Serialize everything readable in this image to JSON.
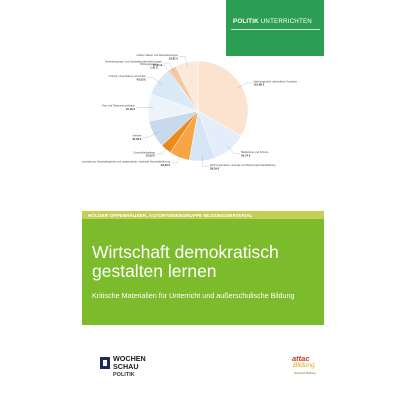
{
  "series": {
    "label_bold": "POLITIK",
    "label_rest": "UNTERRICHTEN",
    "color": "#2c9e54"
  },
  "author_line": "HOLGER OPPENHÄUSER, AUTOR*INNENGRUPPE BILDUNGSMATERIAL",
  "title": "Wirtschaft demokratisch gestalten lernen",
  "subtitle": "Kritische Materialien für Unterricht und außerschulische Bildung",
  "publisher": {
    "line1": "WOCHEN",
    "line2": "SCHAU",
    "line3": "POLITIK"
  },
  "partner": {
    "name_top": "attac",
    "name_bottom": "Bildung",
    "tagline": "Netzwerk Bildung"
  },
  "colors": {
    "band": "#7cbb2b",
    "author_bar": "#c5cf58",
    "white": "#ffffff"
  },
  "chart_data": {
    "type": "pie",
    "slices": [
      {
        "label": "Nahrungsmittel, alkoholfreie Getränke",
        "value_text": "151,89 €",
        "value": 151.89,
        "color": "#fbe3cf"
      },
      {
        "label": "Bekleidung und Schuhe",
        "value_text": "50,74 €",
        "value": 50.74,
        "color": "#e3eefa"
      },
      {
        "label": "Wohnungsmieten, Energie und Wohnungsinstandhaltung",
        "value_text": "38,29 €",
        "value": 38.29,
        "color": "#d6e6f6"
      },
      {
        "label": "Innenausstattung, Haushaltsgeräte und -gegenstände, laufende Haushaltsführung",
        "value_text": "29,99 €",
        "value": 29.99,
        "color": "#f6a645"
      },
      {
        "label": "Gesundheitspflege",
        "value_text": "15,92 €",
        "value": 15.92,
        "color": "#ec8a1c"
      },
      {
        "label": "Verkehr",
        "value_text": "40,28 €",
        "value": 40.28,
        "color": "#c9d9ec"
      },
      {
        "label": "Post und Telekommunikation",
        "value_text": "40,18 €",
        "value": 40.18,
        "color": "#edf3fb"
      },
      {
        "label": "Freizeit, Unterhaltung und Kultur",
        "value_text": "42,52 €",
        "value": 42.52,
        "color": "#dbe8f5"
      },
      {
        "label": "Bildungswesen",
        "value_text": "1,41 €",
        "value": 1.41,
        "color": "#9fb3c8"
      },
      {
        "label": "Beherbergungs- und Gaststättendienstleistungen",
        "value_text": "11,31 €",
        "value": 11.31,
        "color": "#f3c9a4"
      },
      {
        "label": "Andere Waren und Dienstleistungen",
        "value_text": "33,81 €",
        "value": 33.81,
        "color": "#fbead9"
      }
    ]
  }
}
